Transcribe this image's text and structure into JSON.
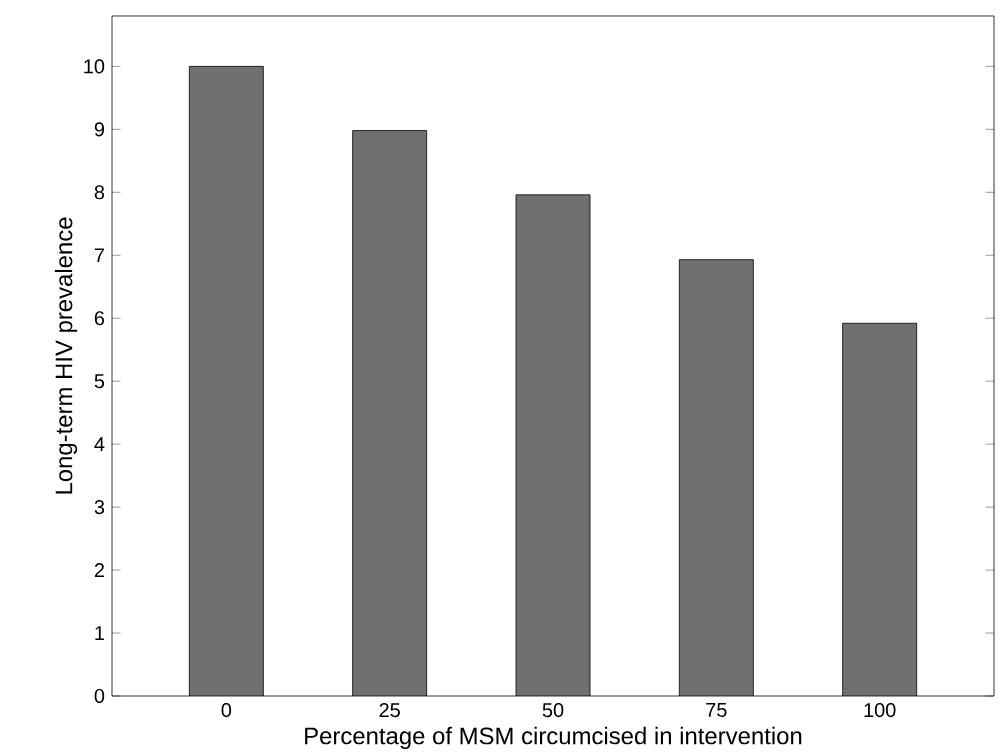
{
  "chart_data": {
    "type": "bar",
    "xlabel": "Percentage of MSM circumcised in intervention",
    "ylabel": "Long-term HIV prevalence",
    "categories": [
      "0",
      "25",
      "50",
      "75",
      "100"
    ],
    "values": [
      10,
      8.98,
      7.96,
      6.93,
      5.92
    ],
    "color": "#707070",
    "ylim": [
      0,
      10.8
    ],
    "yticks": [
      0,
      1,
      2,
      3,
      4,
      5,
      6,
      7,
      8,
      9,
      10
    ]
  }
}
